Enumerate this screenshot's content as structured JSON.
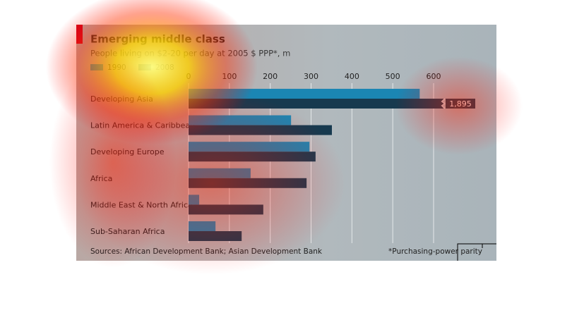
{
  "chart_data": {
    "type": "bar",
    "orientation": "horizontal",
    "title": "Emerging middle class",
    "subtitle": "People living on $2-20 per day at 2005 $ PPP*, m",
    "categories": [
      "Developing Asia",
      "Latin America & Caribbean",
      "Developing Europe",
      "Africa",
      "Middle East & North Africa",
      "Sub-Saharan Africa"
    ],
    "series": [
      {
        "name": "1990",
        "color": "#1b86b3",
        "values": [
          566,
          251,
          296,
          152,
          26,
          66
        ]
      },
      {
        "name": "2008",
        "color": "#173a4f",
        "values": [
          1895,
          351,
          311,
          289,
          183,
          130
        ],
        "value_labels": [
          "1,895",
          null,
          null,
          null,
          null,
          null
        ]
      }
    ],
    "xlim": [
      0,
      600
    ],
    "xticks": [
      0,
      100,
      200,
      300,
      400,
      500,
      600
    ],
    "grid": true,
    "source": "Sources: African Development Bank; Asian Development Bank",
    "footnote": "*Purchasing-power parity"
  }
}
